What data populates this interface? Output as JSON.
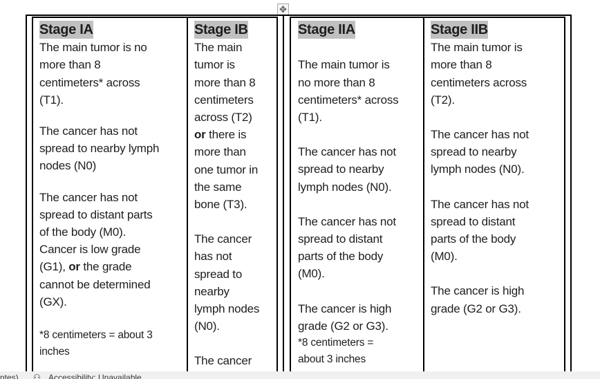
{
  "table": {
    "columns": [
      {
        "heading": "Stage IA",
        "paragraphs": [
          {
            "lines": [
              "The main tumor is no",
              "more than 8",
              "centimeters* across",
              "(T1)."
            ]
          },
          {
            "lines": [
              "The cancer has not",
              "spread to nearby lymph",
              "nodes (N0)"
            ]
          },
          {
            "lines": [
              "The cancer has not",
              "spread to distant parts",
              "of the body (M0)."
            ]
          },
          {
            "nogap": true,
            "lines": [
              "Cancer is low grade",
              {
                "pre": "(G1), ",
                "bold": "or",
                "post": " the grade"
              },
              "cannot be determined",
              "(GX)."
            ]
          },
          {
            "note": true,
            "lines": [
              "*8 centimeters = about 3",
              "inches"
            ]
          }
        ]
      },
      {
        "heading": "Stage IB",
        "paragraphs": [
          {
            "lines": [
              "The main",
              "tumor is",
              "more than 8",
              "centimeters",
              "across (T2)",
              {
                "pre": "",
                "bold": "or",
                "post": " there is"
              },
              "more than",
              "one tumor in",
              "the same",
              "bone (T3)."
            ]
          },
          {
            "lines": [
              "The cancer",
              "has not",
              "spread to",
              "nearby",
              "lymph nodes",
              "(N0)."
            ]
          },
          {
            "lines": [
              "The cancer"
            ]
          }
        ]
      },
      {
        "heading": "Stage IIA",
        "paragraphs": [
          {
            "lines": [
              ""
            ]
          },
          {
            "nogap": true,
            "lines": [
              "The main tumor is",
              "no more than 8",
              "centimeters* across",
              "(T1)."
            ]
          },
          {
            "lines": [
              "The cancer has not",
              "spread to nearby",
              "lymph nodes (N0)."
            ]
          },
          {
            "lines": [
              "The cancer has not",
              "spread to distant",
              "parts of the body",
              "(M0)."
            ]
          },
          {
            "lines": [
              "The cancer is high",
              "grade (G2 or G3)."
            ]
          },
          {
            "note": true,
            "lines": [
              "*8 centimeters =",
              "about 3 inches"
            ]
          }
        ]
      },
      {
        "heading": "Stage IIB",
        "paragraphs": [
          {
            "lines": [
              "The main tumor is",
              "more than 8",
              "centimeters across",
              "(T2)."
            ]
          },
          {
            "lines": [
              "The cancer has not",
              "spread to nearby",
              "lymph nodes (N0)."
            ]
          },
          {
            "lines": [
              "The cancer has not",
              "spread to distant",
              "parts of the body",
              "(M0)."
            ]
          },
          {
            "lines": [
              "The cancer is high",
              "grade (G2 or G3)."
            ]
          }
        ]
      }
    ]
  },
  "status_bar": {
    "left_text": "ntes)",
    "accessibility": "Accessibility: Unavailable"
  },
  "colors": {
    "heading_highlight": "#c0c0c0",
    "border": "#000000",
    "status_bg": "#f0f0f0"
  }
}
